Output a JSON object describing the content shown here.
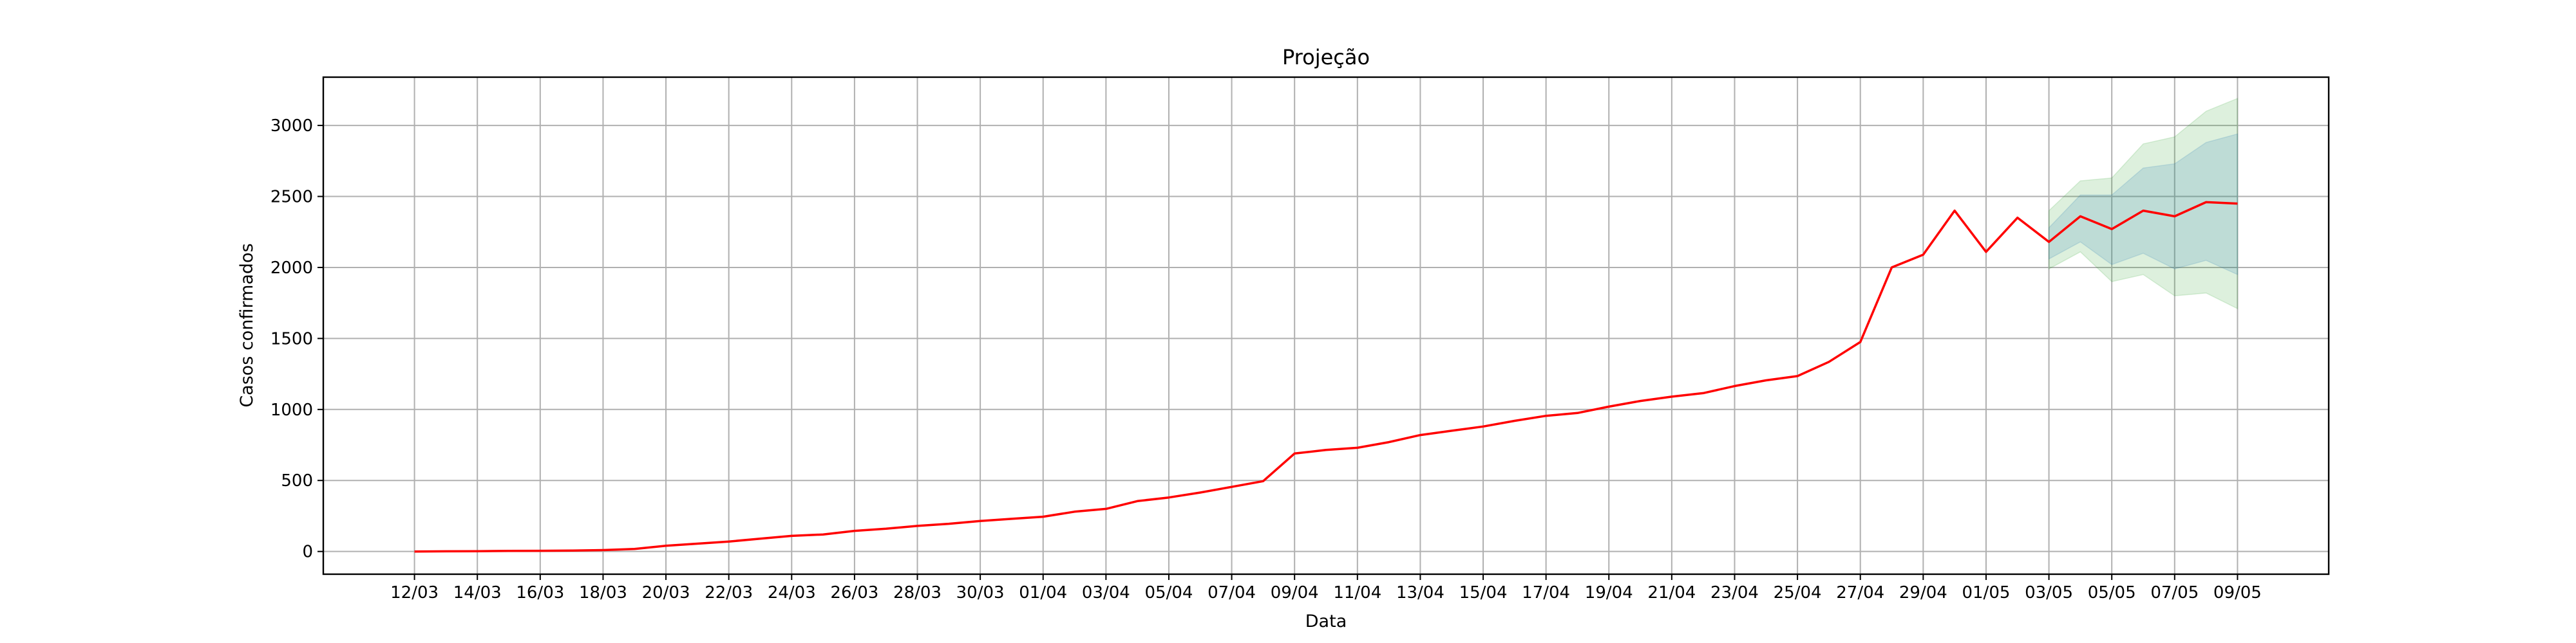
{
  "chart_data": {
    "type": "line",
    "title": "Projeção",
    "xlabel": "Data",
    "ylabel": "Casos confirmados",
    "ylim": [
      -160,
      3340
    ],
    "yticks": [
      0,
      500,
      1000,
      1500,
      2000,
      2500,
      3000
    ],
    "grid": true,
    "x_tick_labels": [
      "12/03",
      "14/03",
      "16/03",
      "18/03",
      "20/03",
      "22/03",
      "24/03",
      "26/03",
      "28/03",
      "30/03",
      "01/04",
      "03/04",
      "05/04",
      "07/04",
      "09/04",
      "11/04",
      "13/04",
      "15/04",
      "17/04",
      "19/04",
      "21/04",
      "23/04",
      "25/04",
      "27/04",
      "29/04",
      "01/05",
      "03/05",
      "05/05",
      "07/05",
      "09/05"
    ],
    "x_tick_every": 2,
    "series": [
      {
        "color": "#ff0000",
        "values": [
          0,
          1,
          2,
          4,
          5,
          6,
          10,
          18,
          40,
          55,
          70,
          90,
          110,
          120,
          145,
          160,
          180,
          195,
          215,
          230,
          245,
          280,
          300,
          355,
          380,
          415,
          455,
          495,
          690,
          715,
          730,
          770,
          820,
          850,
          880,
          920,
          955,
          975,
          1020,
          1060,
          1090,
          1115,
          1165,
          1205,
          1235,
          1335,
          1475,
          2000,
          2090,
          2400,
          2110,
          2350,
          2180,
          2360,
          2270,
          2400,
          2360,
          2460,
          2450
        ]
      }
    ],
    "bands": [
      {
        "color": "#2ca02c",
        "opacity": 0.16,
        "start_index": 52,
        "lower": [
          1990,
          2110,
          1900,
          1950,
          1800,
          1820,
          1710
        ],
        "upper": [
          2400,
          2610,
          2630,
          2870,
          2920,
          3100,
          3190
        ]
      },
      {
        "color": "#1f77b4",
        "opacity": 0.16,
        "start_index": 52,
        "lower": [
          2060,
          2180,
          2020,
          2100,
          1990,
          2050,
          1950
        ],
        "upper": [
          2280,
          2510,
          2510,
          2700,
          2730,
          2880,
          2940
        ]
      }
    ]
  }
}
